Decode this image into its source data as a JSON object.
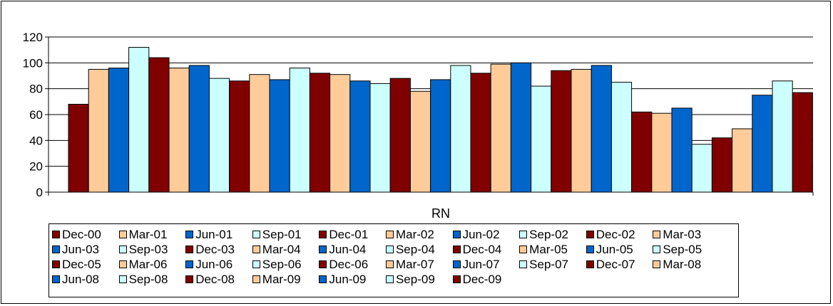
{
  "chart_data": {
    "type": "bar",
    "title": "",
    "xlabel": "",
    "ylabel": "",
    "ylim": [
      0,
      120
    ],
    "yticks": [
      0,
      20,
      40,
      60,
      80,
      100,
      120
    ],
    "grid": true,
    "legend_placement": "bottom",
    "categories": [
      "RN"
    ],
    "series": [
      {
        "name": "Dec-00",
        "values": [
          68
        ]
      },
      {
        "name": "Mar-01",
        "values": [
          95
        ]
      },
      {
        "name": "Jun-01",
        "values": [
          96
        ]
      },
      {
        "name": "Sep-01",
        "values": [
          112
        ]
      },
      {
        "name": "Dec-01",
        "values": [
          104
        ]
      },
      {
        "name": "Mar-02",
        "values": [
          96
        ]
      },
      {
        "name": "Jun-02",
        "values": [
          98
        ]
      },
      {
        "name": "Sep-02",
        "values": [
          88
        ]
      },
      {
        "name": "Dec-02",
        "values": [
          86
        ]
      },
      {
        "name": "Mar-03",
        "values": [
          91
        ]
      },
      {
        "name": "Jun-03",
        "values": [
          87
        ]
      },
      {
        "name": "Sep-03",
        "values": [
          96
        ]
      },
      {
        "name": "Dec-03",
        "values": [
          92
        ]
      },
      {
        "name": "Mar-04",
        "values": [
          91
        ]
      },
      {
        "name": "Jun-04",
        "values": [
          86
        ]
      },
      {
        "name": "Sep-04",
        "values": [
          84
        ]
      },
      {
        "name": "Dec-04",
        "values": [
          88
        ]
      },
      {
        "name": "Mar-05",
        "values": [
          78
        ]
      },
      {
        "name": "Jun-05",
        "values": [
          87
        ]
      },
      {
        "name": "Sep-05",
        "values": [
          98
        ]
      },
      {
        "name": "Dec-05",
        "values": [
          92
        ]
      },
      {
        "name": "Mar-06",
        "values": [
          99
        ]
      },
      {
        "name": "Jun-06",
        "values": [
          100
        ]
      },
      {
        "name": "Sep-06",
        "values": [
          82
        ]
      },
      {
        "name": "Dec-06",
        "values": [
          94
        ]
      },
      {
        "name": "Mar-07",
        "values": [
          95
        ]
      },
      {
        "name": "Jun-07",
        "values": [
          98
        ]
      },
      {
        "name": "Sep-07",
        "values": [
          85
        ]
      },
      {
        "name": "Dec-07",
        "values": [
          62
        ]
      },
      {
        "name": "Mar-08",
        "values": [
          61
        ]
      },
      {
        "name": "Jun-08",
        "values": [
          65
        ]
      },
      {
        "name": "Sep-08",
        "values": [
          37
        ]
      },
      {
        "name": "Dec-08",
        "values": [
          42
        ]
      },
      {
        "name": "Mar-09",
        "values": [
          49
        ]
      },
      {
        "name": "Jun-09",
        "values": [
          75
        ]
      },
      {
        "name": "Sep-09",
        "values": [
          86
        ]
      },
      {
        "name": "Dec-09",
        "values": [
          77
        ]
      }
    ],
    "colors": [
      "#800000",
      "#FFCC99",
      "#0066CC",
      "#CCFFFF"
    ]
  }
}
